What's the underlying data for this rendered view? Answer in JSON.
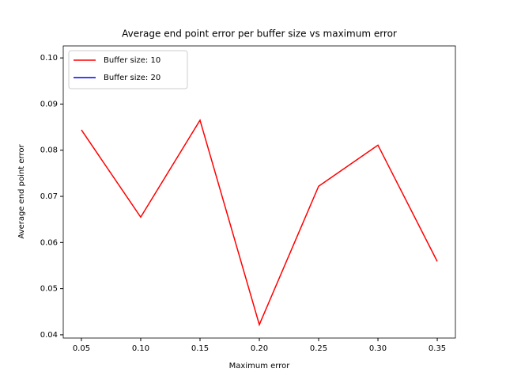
{
  "chart_data": {
    "type": "line",
    "title": "Average end point error per buffer size vs maximum error",
    "x_label": "Maximum error",
    "y_label": "Average end point error",
    "x": [
      0.05,
      0.1,
      0.15,
      0.2,
      0.25,
      0.3,
      0.35
    ],
    "series": [
      {
        "name": "Buffer size: 10",
        "color": "#ff0000",
        "values": [
          0.0844,
          0.0655,
          0.0865,
          0.0422,
          0.0722,
          0.0811,
          0.0559
        ]
      },
      {
        "name": "Buffer size: 20",
        "color": "#0000ff",
        "values": [
          null,
          null,
          null,
          null,
          null,
          null,
          null
        ]
      }
    ],
    "xlim": [
      0.0347,
      0.3653
    ],
    "xticks": [
      0.05,
      {
        "value": 0.1,
        "label": "0.10"
      },
      0.15,
      {
        "value": 0.2,
        "label": "0.20"
      },
      0.25,
      {
        "value": 0.3,
        "label": "0.30"
      },
      0.35
    ],
    "ylim": [
      0.0393,
      0.1026
    ],
    "yticks": [
      0.04,
      0.05,
      0.06,
      0.07,
      0.08,
      0.09,
      {
        "value": 0.1,
        "label": "0.10"
      }
    ],
    "grid": false,
    "legend": "upper left"
  }
}
